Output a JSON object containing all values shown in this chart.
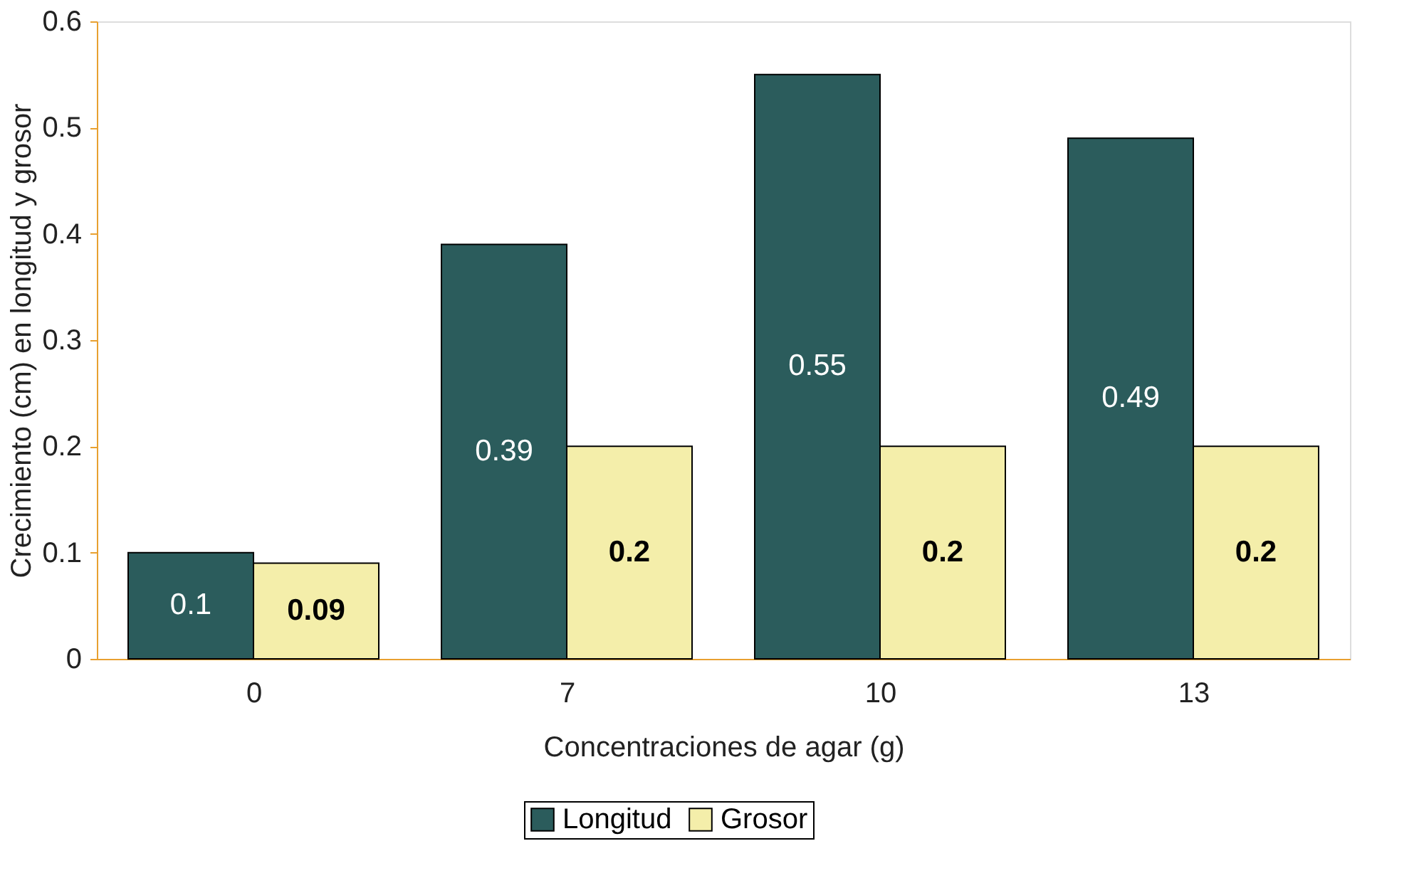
{
  "chart_data": {
    "type": "bar",
    "xlabel": "Concentraciones de agar (g)",
    "ylabel": "Crecimiento (cm) en longitud y grosor",
    "categories": [
      "0",
      "7",
      "10",
      "13"
    ],
    "series": [
      {
        "name": "Longitud",
        "color": "#2b5c5c",
        "values": [
          0.1,
          0.39,
          0.55,
          0.49
        ]
      },
      {
        "name": "Grosor",
        "color": "#f4eeaa",
        "values": [
          0.09,
          0.2,
          0.2,
          0.2
        ]
      }
    ],
    "ylim": [
      0,
      0.6
    ],
    "yticks": [
      0,
      0.1,
      0.2,
      0.3,
      0.4,
      0.5,
      0.6
    ],
    "grid": false,
    "legend": "bottom",
    "data_labels": true
  }
}
